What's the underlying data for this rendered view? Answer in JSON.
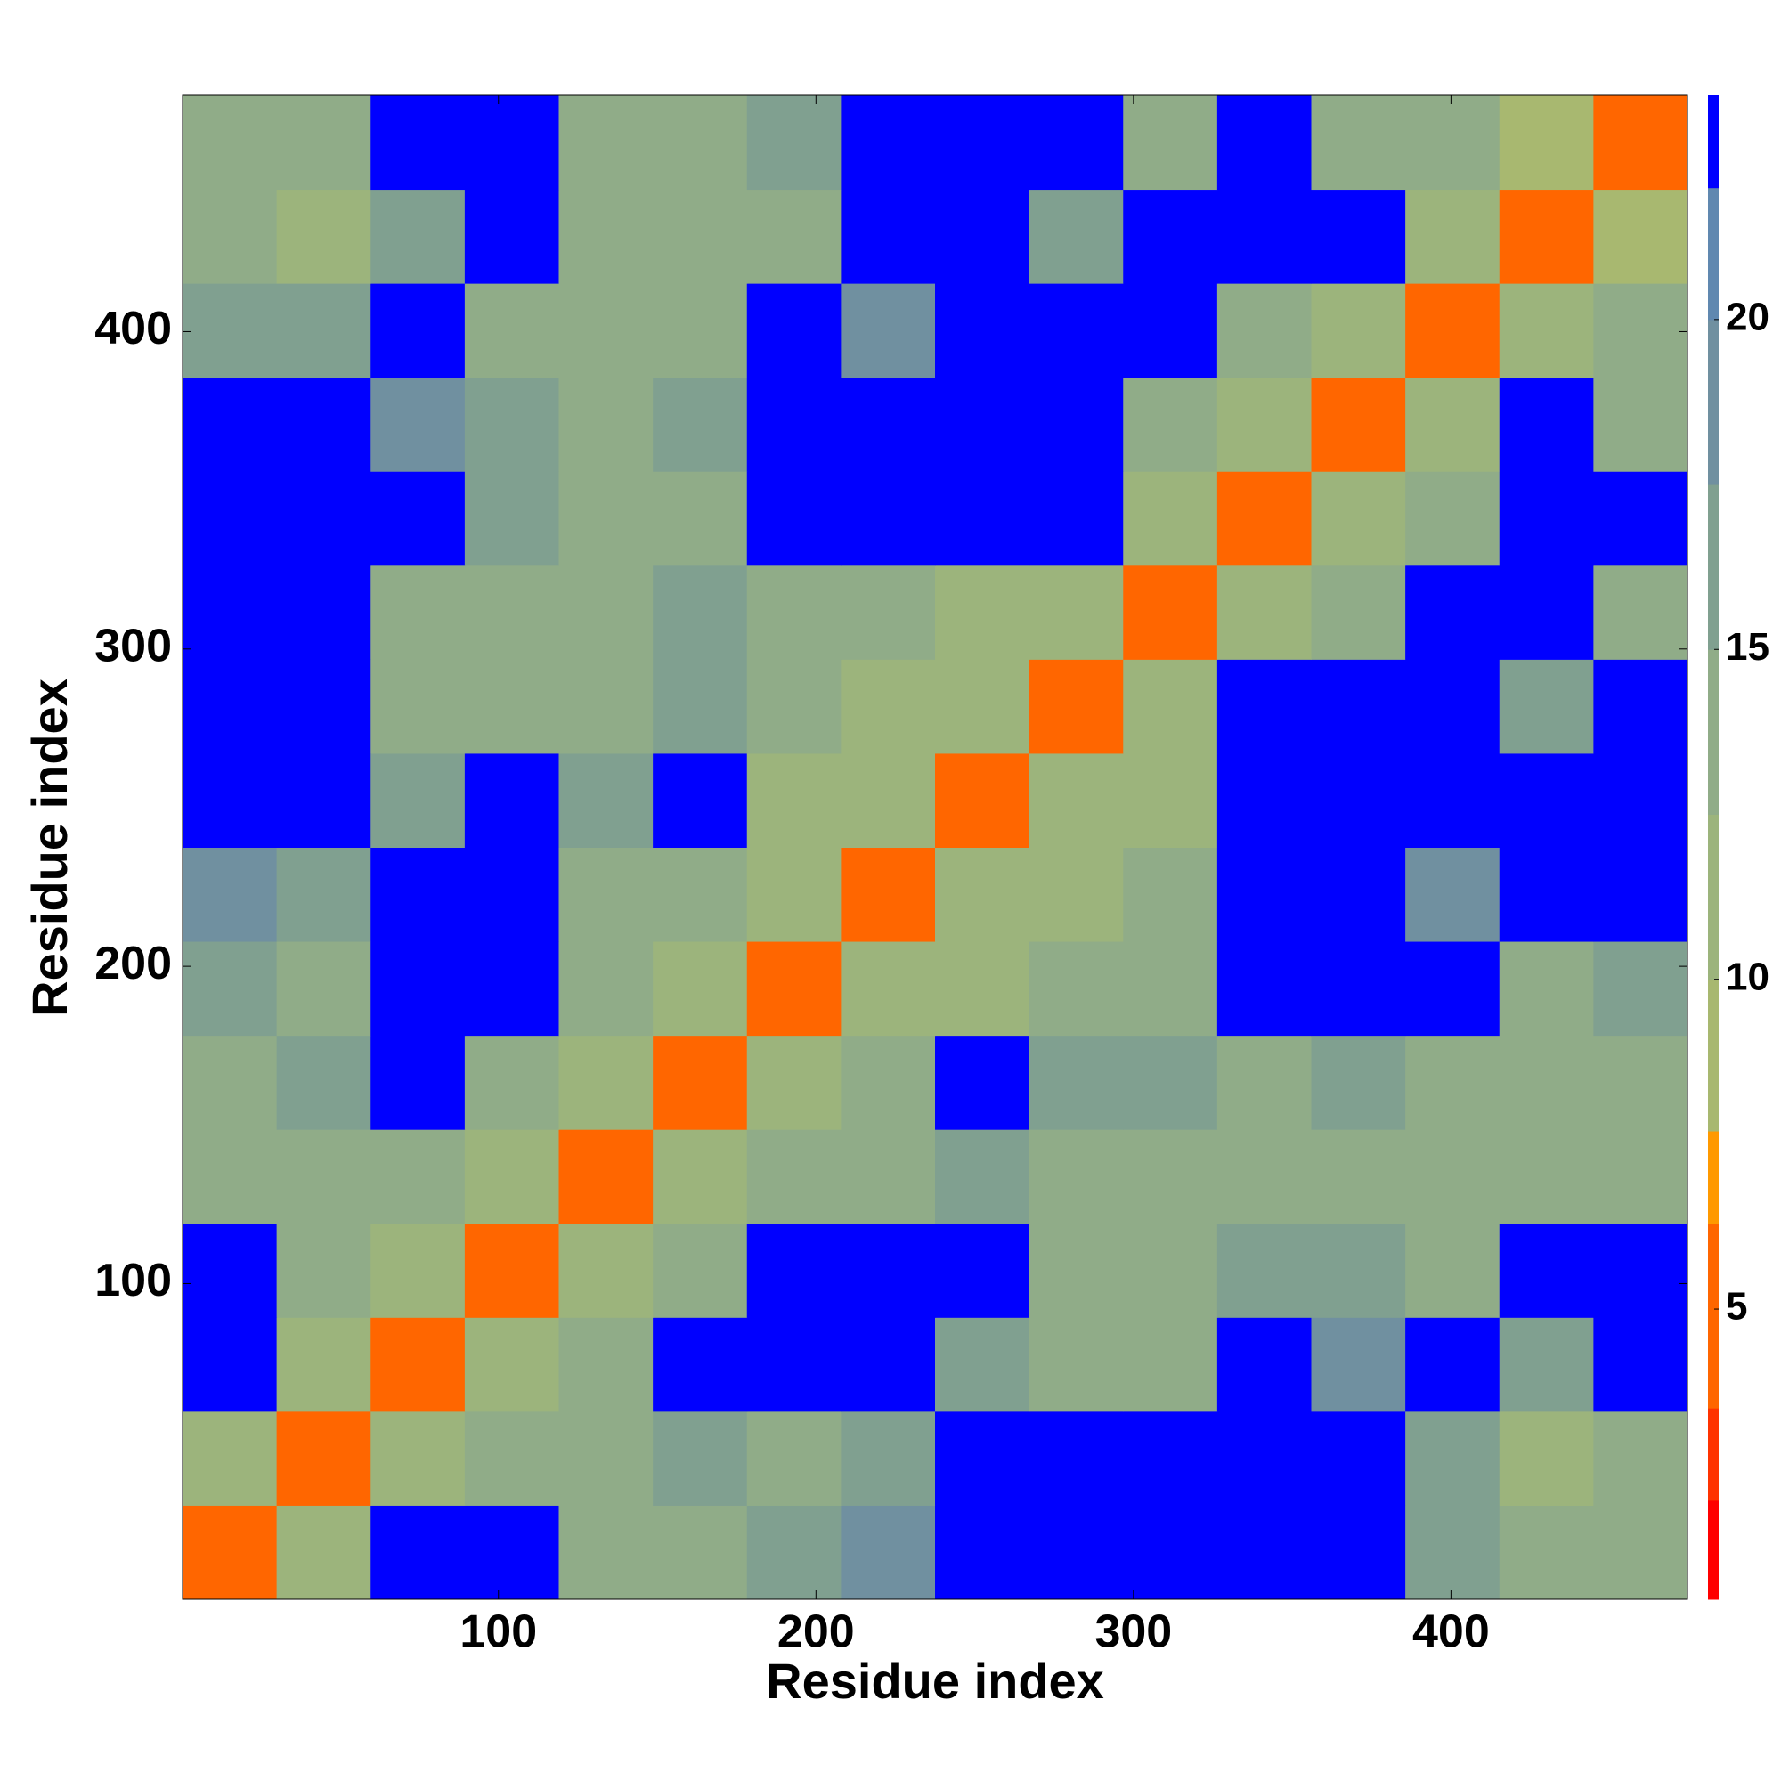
{
  "chart_data": {
    "type": "heatmap",
    "x_label": "Residue index",
    "y_label": "Residue index",
    "bins": [
      0.5,
      30.125,
      59.75,
      89.375,
      119,
      148.625,
      178.25,
      207.875,
      237.5,
      267.125,
      296.75,
      326.375,
      356,
      385.625,
      415.25,
      444.875,
      474.5
    ],
    "values": [
      [
        4,
        11,
        23,
        23,
        15,
        14,
        17,
        18,
        23,
        23,
        23,
        23,
        23,
        16,
        13,
        15
      ],
      [
        11,
        4,
        12,
        15,
        14,
        16,
        13,
        17,
        23,
        23,
        23,
        23,
        23,
        16,
        12,
        14
      ],
      [
        23,
        12,
        4,
        12,
        14,
        23,
        23,
        23,
        16,
        13,
        14,
        23,
        18,
        23,
        16,
        23
      ],
      [
        23,
        15,
        12,
        4,
        12,
        15,
        23,
        23,
        23,
        13,
        14,
        16,
        17,
        15,
        23,
        23
      ],
      [
        15,
        14,
        14,
        12,
        4,
        11,
        14,
        15,
        16,
        15,
        15,
        15,
        15,
        15,
        13,
        14
      ],
      [
        14,
        16,
        23,
        15,
        11,
        4,
        12,
        15,
        23,
        16,
        16,
        15,
        17,
        14,
        14,
        13
      ],
      [
        17,
        13,
        23,
        23,
        14,
        12,
        4,
        11,
        12,
        13,
        14,
        23,
        23,
        23,
        15,
        16
      ],
      [
        18,
        17,
        23,
        23,
        15,
        15,
        11,
        4,
        11,
        12,
        13,
        23,
        23,
        18,
        23,
        23
      ],
      [
        23,
        23,
        16,
        23,
        16,
        23,
        12,
        11,
        4,
        11,
        12,
        23,
        23,
        23,
        23,
        23
      ],
      [
        23,
        23,
        13,
        13,
        15,
        16,
        13,
        12,
        11,
        4,
        12,
        23,
        23,
        23,
        17,
        23
      ],
      [
        23,
        23,
        14,
        14,
        15,
        16,
        14,
        13,
        12,
        12,
        4,
        12,
        14,
        23,
        23,
        15
      ],
      [
        23,
        23,
        23,
        16,
        15,
        15,
        23,
        23,
        23,
        23,
        12,
        4,
        11,
        13,
        23,
        23
      ],
      [
        23,
        23,
        18,
        17,
        15,
        17,
        23,
        23,
        23,
        23,
        14,
        11,
        4,
        11,
        23,
        15
      ],
      [
        16,
        16,
        23,
        15,
        15,
        14,
        23,
        18,
        23,
        23,
        23,
        13,
        11,
        4,
        11,
        13
      ],
      [
        13,
        12,
        16,
        23,
        13,
        14,
        15,
        23,
        23,
        17,
        23,
        23,
        23,
        11,
        4,
        10
      ],
      [
        15,
        14,
        23,
        23,
        14,
        13,
        16,
        23,
        23,
        23,
        15,
        23,
        15,
        13,
        10,
        4
      ]
    ],
    "xlim": [
      0.5,
      474.5
    ],
    "ylim": [
      0.5,
      474.5
    ],
    "xticks": [
      100,
      200,
      300,
      400
    ],
    "yticks": [
      100,
      200,
      300,
      400
    ],
    "color_levels": [
      0.6,
      2.1,
      3.5,
      6.3,
      7.7,
      10,
      12.5,
      15,
      17.5,
      20,
      22,
      23.4
    ],
    "colors": [
      "#ff0000",
      "#ff3300",
      "#ff6600",
      "#ff9900",
      "#a8b870",
      "#9cb47c",
      "#90ac88",
      "#80a090",
      "#7090a0",
      "#6088b0",
      "#0000ff"
    ],
    "colorbar_ticks": [
      5,
      10,
      15,
      20
    ]
  }
}
